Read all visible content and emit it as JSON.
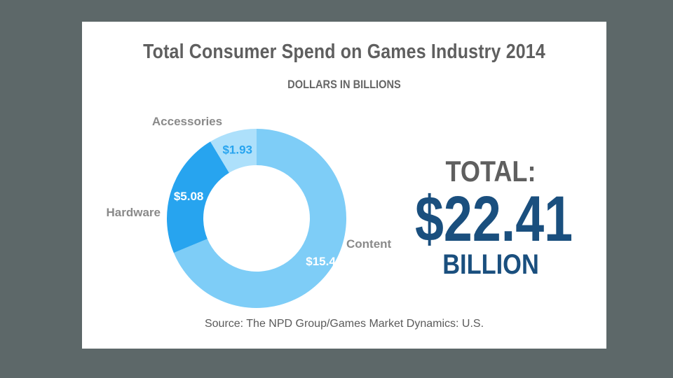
{
  "chart_data": {
    "type": "pie",
    "title": "Total Consumer Spend on Games Industry 2014",
    "subtitle": "DOLLARS IN BILLIONS",
    "categories": [
      "Content",
      "Hardware",
      "Accessories"
    ],
    "values": [
      15.4,
      5.08,
      1.93
    ],
    "value_labels": [
      "$15.4",
      "$5.08",
      "$1.93"
    ],
    "colors": [
      "#7ecdf7",
      "#27a4ef",
      "#ade0fb"
    ],
    "value_label_colors": [
      "#ffffff",
      "#ffffff",
      "#27a4ef"
    ],
    "style": "donut"
  },
  "total": {
    "label": "TOTAL:",
    "value": "$22.41",
    "unit": "BILLION"
  },
  "source": "Source: The NPD Group/Games Market Dynamics: U.S."
}
